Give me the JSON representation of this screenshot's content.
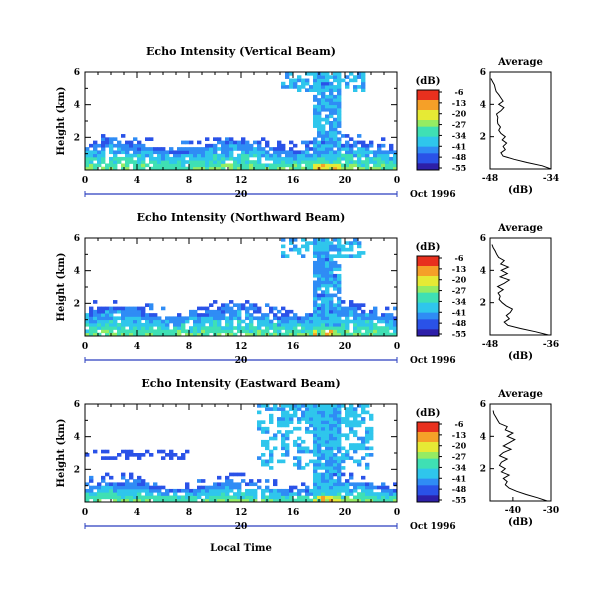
{
  "chart_data": [
    {
      "type": "heatmap",
      "title": "Echo Intensity (Vertical Beam)",
      "ylabel": "Height (km)",
      "xlabel": "",
      "date_label": "Oct 1996",
      "day_label": "20",
      "x_ticks": [
        "0",
        "4",
        "8",
        "12",
        "16",
        "20",
        "0"
      ],
      "y_ticks": [
        "6",
        "4",
        "2"
      ],
      "xlim": [
        0,
        24
      ],
      "ylim": [
        0,
        6
      ],
      "colorbar": {
        "unit": "(dB)",
        "ticks": [
          "-6",
          "-13",
          "-20",
          "-27",
          "-34",
          "-41",
          "-48",
          "-55"
        ]
      },
      "average_profile": {
        "title": "Average",
        "xlabel": "(dB)",
        "x_ticks": [
          "-48",
          "-34"
        ],
        "xlim": [
          -48,
          -34
        ],
        "y_ticks": [
          "6",
          "4",
          "2"
        ],
        "height": [
          0,
          0.2,
          0.4,
          0.6,
          0.8,
          1.0,
          1.2,
          1.4,
          1.6,
          1.8,
          2.0,
          2.2,
          2.4,
          2.6,
          2.8,
          3.0,
          3.2,
          3.4,
          3.6,
          3.8,
          4.0,
          4.2,
          4.4,
          4.6,
          4.8,
          5.0,
          5.2,
          5.4,
          5.6
        ],
        "value": [
          -34,
          -36,
          -39.5,
          -42.5,
          -45,
          -45.5,
          -44.5,
          -45,
          -44.2,
          -45.2,
          -44.5,
          -45.5,
          -46,
          -45.6,
          -46.2,
          -46.3,
          -46.2,
          -46.5,
          -45.5,
          -44.8,
          -46,
          -45,
          -45.5,
          -46,
          -46.6,
          -46.8,
          -47,
          -47.4,
          -47.8
        ]
      }
    },
    {
      "type": "heatmap",
      "title": "Echo Intensity (Northward Beam)",
      "ylabel": "Height (km)",
      "xlabel": "",
      "date_label": "Oct 1996",
      "day_label": "20",
      "x_ticks": [
        "0",
        "4",
        "8",
        "12",
        "16",
        "20",
        "0"
      ],
      "y_ticks": [
        "6",
        "4",
        "2"
      ],
      "xlim": [
        0,
        24
      ],
      "ylim": [
        0,
        6
      ],
      "colorbar": {
        "unit": "(dB)",
        "ticks": [
          "-6",
          "-13",
          "-20",
          "-27",
          "-34",
          "-41",
          "-48",
          "-55"
        ]
      },
      "average_profile": {
        "title": "Average",
        "xlabel": "(dB)",
        "x_ticks": [
          "-48",
          "-36"
        ],
        "xlim": [
          -48,
          -36
        ],
        "y_ticks": [
          "6",
          "4",
          "2"
        ],
        "height": [
          0,
          0.2,
          0.4,
          0.6,
          0.8,
          1.0,
          1.2,
          1.4,
          1.6,
          1.8,
          2.0,
          2.2,
          2.4,
          2.6,
          2.8,
          3.0,
          3.2,
          3.4,
          3.6,
          3.8,
          4.0,
          4.2,
          4.4,
          4.6,
          4.8,
          5.0,
          5.2,
          5.4,
          5.6
        ],
        "value": [
          -36.5,
          -39,
          -42,
          -44.5,
          -45.2,
          -44.2,
          -44.8,
          -44,
          -43.6,
          -44.8,
          -45.6,
          -46.2,
          -46,
          -46.4,
          -45.4,
          -46.5,
          -45.2,
          -44.2,
          -46,
          -44.6,
          -45.8,
          -44.4,
          -45.9,
          -45.2,
          -46.3,
          -46.7,
          -47,
          -47.4,
          -47.6
        ]
      }
    },
    {
      "type": "heatmap",
      "title": "Echo Intensity (Eastward Beam)",
      "ylabel": "Height (km)",
      "xlabel": "Local Time",
      "date_label": "Oct 1996",
      "day_label": "20",
      "x_ticks": [
        "0",
        "4",
        "8",
        "12",
        "16",
        "20",
        "0"
      ],
      "y_ticks": [
        "6",
        "4",
        "2"
      ],
      "xlim": [
        0,
        24
      ],
      "ylim": [
        0,
        6
      ],
      "colorbar": {
        "unit": "(dB)",
        "ticks": [
          "-6",
          "-13",
          "-20",
          "-27",
          "-34",
          "-41",
          "-48",
          "-55"
        ]
      },
      "average_profile": {
        "title": "Average",
        "xlabel": "(dB)",
        "x_ticks": [
          "-40",
          "-30"
        ],
        "xlim": [
          -46,
          -30
        ],
        "y_ticks": [
          "6",
          "4",
          "2"
        ],
        "height": [
          0,
          0.2,
          0.4,
          0.6,
          0.8,
          1.0,
          1.2,
          1.4,
          1.6,
          1.8,
          2.0,
          2.2,
          2.4,
          2.6,
          2.8,
          3.0,
          3.2,
          3.4,
          3.6,
          3.8,
          4.0,
          4.2,
          4.4,
          4.6,
          4.8,
          5.0,
          5.2,
          5.4,
          5.6
        ],
        "value": [
          -31,
          -33.5,
          -36.5,
          -39,
          -41,
          -42,
          -41.5,
          -42.5,
          -41,
          -43,
          -42,
          -43.5,
          -43,
          -41.5,
          -43.5,
          -42.5,
          -40.5,
          -42.5,
          -41,
          -39.5,
          -41.5,
          -40,
          -42,
          -41.5,
          -43.5,
          -44,
          -44.5,
          -45,
          -45.2
        ]
      }
    }
  ],
  "colorscale": [
    "#2d1fa8",
    "#2a52e8",
    "#2f8cf5",
    "#2fc6ec",
    "#3fe0b4",
    "#95ec63",
    "#e6ea35",
    "#f5a028",
    "#e8301e"
  ]
}
